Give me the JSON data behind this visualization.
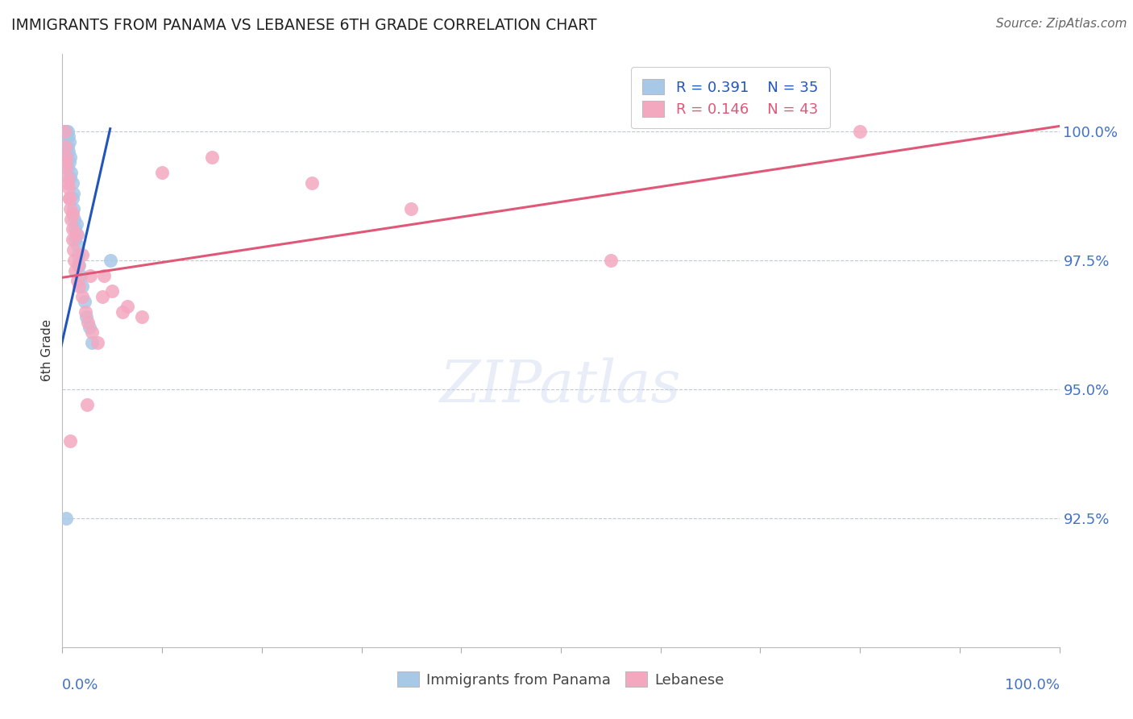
{
  "title": "IMMIGRANTS FROM PANAMA VS LEBANESE 6TH GRADE CORRELATION CHART",
  "source": "Source: ZipAtlas.com",
  "ylabel": "6th Grade",
  "y_tick_labels": [
    "92.5%",
    "95.0%",
    "97.5%",
    "100.0%"
  ],
  "y_tick_values": [
    92.5,
    95.0,
    97.5,
    100.0
  ],
  "xlim": [
    0.0,
    100.0
  ],
  "ylim": [
    90.0,
    101.5
  ],
  "legend_r1": "R = 0.391",
  "legend_n1": "N = 35",
  "legend_r2": "R = 0.146",
  "legend_n2": "N = 43",
  "panama_color": "#a8c8e8",
  "lebanese_color": "#f4a8c0",
  "panama_line_color": "#2255bb",
  "lebanese_line_color": "#e05878",
  "blue_scatter_x": [
    0.2,
    0.3,
    0.4,
    0.4,
    0.5,
    0.5,
    0.6,
    0.6,
    0.7,
    0.7,
    0.8,
    0.9,
    1.0,
    1.0,
    1.1,
    1.2,
    1.3,
    1.3,
    1.4,
    1.5,
    1.6,
    1.7,
    1.8,
    2.0,
    2.2,
    2.4,
    2.7,
    3.0,
    0.3,
    0.5,
    0.8,
    1.1,
    1.5,
    4.8,
    0.4
  ],
  "blue_scatter_y": [
    100.0,
    100.0,
    100.0,
    99.8,
    100.0,
    99.7,
    99.9,
    99.6,
    99.8,
    99.4,
    99.5,
    99.2,
    99.0,
    98.7,
    98.5,
    98.3,
    98.1,
    97.9,
    98.2,
    97.8,
    97.6,
    97.4,
    97.2,
    97.0,
    96.7,
    96.4,
    96.2,
    95.9,
    99.5,
    99.3,
    99.1,
    98.8,
    98.0,
    97.5,
    92.5
  ],
  "pink_scatter_x": [
    0.2,
    0.3,
    0.4,
    0.4,
    0.5,
    0.6,
    0.7,
    0.8,
    0.9,
    1.0,
    1.0,
    1.1,
    1.2,
    1.3,
    1.5,
    1.6,
    1.7,
    2.0,
    2.3,
    2.6,
    3.0,
    3.5,
    4.2,
    5.0,
    6.5,
    8.0,
    0.3,
    0.5,
    0.7,
    1.0,
    1.4,
    2.0,
    2.8,
    4.0,
    6.0,
    10.0,
    15.0,
    25.0,
    35.0,
    55.0,
    80.0,
    2.5,
    0.8
  ],
  "pink_scatter_y": [
    100.0,
    99.7,
    99.5,
    99.3,
    99.1,
    98.9,
    98.7,
    98.5,
    98.3,
    98.1,
    97.9,
    97.7,
    97.5,
    97.3,
    97.1,
    97.4,
    97.0,
    96.8,
    96.5,
    96.3,
    96.1,
    95.9,
    97.2,
    96.9,
    96.6,
    96.4,
    99.4,
    99.0,
    98.7,
    98.4,
    98.0,
    97.6,
    97.2,
    96.8,
    96.5,
    99.2,
    99.5,
    99.0,
    98.5,
    97.5,
    100.0,
    94.7,
    94.0
  ],
  "blue_line_x0": -0.5,
  "blue_line_y0": 95.5,
  "blue_line_x1": 4.8,
  "blue_line_y1": 100.05,
  "pink_line_x0": -0.5,
  "pink_line_y0": 97.15,
  "pink_line_x1": 100.0,
  "pink_line_y1": 100.1
}
